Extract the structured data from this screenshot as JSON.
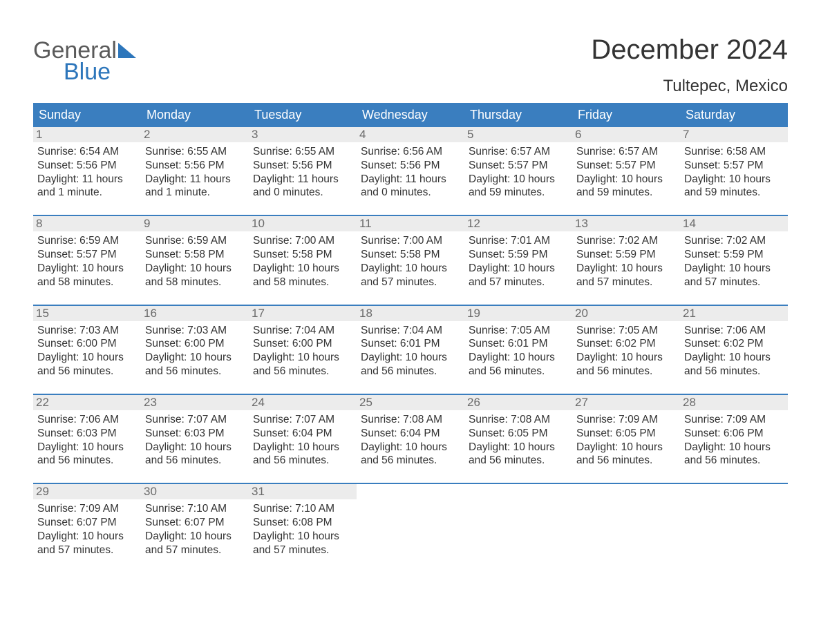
{
  "logo": {
    "line1": "General",
    "line2": "Blue"
  },
  "title": "December 2024",
  "location": "Tultepec, Mexico",
  "colors": {
    "header_bg": "#3a7ebf",
    "header_text": "#ffffff",
    "daynum_bg": "#ececec",
    "daynum_text": "#6a6a6a",
    "body_text": "#333333",
    "logo_gray": "#5a5a5a",
    "logo_blue": "#2d76bb",
    "week_border": "#3a7ebf"
  },
  "typography": {
    "title_fontsize": 40,
    "location_fontsize": 24,
    "dow_fontsize": 18,
    "daynum_fontsize": 17,
    "body_fontsize": 15.5
  },
  "days_of_week": [
    "Sunday",
    "Monday",
    "Tuesday",
    "Wednesday",
    "Thursday",
    "Friday",
    "Saturday"
  ],
  "weeks": [
    [
      {
        "n": "1",
        "sr": "6:54 AM",
        "ss": "5:56 PM",
        "dl": "11 hours and 1 minute."
      },
      {
        "n": "2",
        "sr": "6:55 AM",
        "ss": "5:56 PM",
        "dl": "11 hours and 1 minute."
      },
      {
        "n": "3",
        "sr": "6:55 AM",
        "ss": "5:56 PM",
        "dl": "11 hours and 0 minutes."
      },
      {
        "n": "4",
        "sr": "6:56 AM",
        "ss": "5:56 PM",
        "dl": "11 hours and 0 minutes."
      },
      {
        "n": "5",
        "sr": "6:57 AM",
        "ss": "5:57 PM",
        "dl": "10 hours and 59 minutes."
      },
      {
        "n": "6",
        "sr": "6:57 AM",
        "ss": "5:57 PM",
        "dl": "10 hours and 59 minutes."
      },
      {
        "n": "7",
        "sr": "6:58 AM",
        "ss": "5:57 PM",
        "dl": "10 hours and 59 minutes."
      }
    ],
    [
      {
        "n": "8",
        "sr": "6:59 AM",
        "ss": "5:57 PM",
        "dl": "10 hours and 58 minutes."
      },
      {
        "n": "9",
        "sr": "6:59 AM",
        "ss": "5:58 PM",
        "dl": "10 hours and 58 minutes."
      },
      {
        "n": "10",
        "sr": "7:00 AM",
        "ss": "5:58 PM",
        "dl": "10 hours and 58 minutes."
      },
      {
        "n": "11",
        "sr": "7:00 AM",
        "ss": "5:58 PM",
        "dl": "10 hours and 57 minutes."
      },
      {
        "n": "12",
        "sr": "7:01 AM",
        "ss": "5:59 PM",
        "dl": "10 hours and 57 minutes."
      },
      {
        "n": "13",
        "sr": "7:02 AM",
        "ss": "5:59 PM",
        "dl": "10 hours and 57 minutes."
      },
      {
        "n": "14",
        "sr": "7:02 AM",
        "ss": "5:59 PM",
        "dl": "10 hours and 57 minutes."
      }
    ],
    [
      {
        "n": "15",
        "sr": "7:03 AM",
        "ss": "6:00 PM",
        "dl": "10 hours and 56 minutes."
      },
      {
        "n": "16",
        "sr": "7:03 AM",
        "ss": "6:00 PM",
        "dl": "10 hours and 56 minutes."
      },
      {
        "n": "17",
        "sr": "7:04 AM",
        "ss": "6:00 PM",
        "dl": "10 hours and 56 minutes."
      },
      {
        "n": "18",
        "sr": "7:04 AM",
        "ss": "6:01 PM",
        "dl": "10 hours and 56 minutes."
      },
      {
        "n": "19",
        "sr": "7:05 AM",
        "ss": "6:01 PM",
        "dl": "10 hours and 56 minutes."
      },
      {
        "n": "20",
        "sr": "7:05 AM",
        "ss": "6:02 PM",
        "dl": "10 hours and 56 minutes."
      },
      {
        "n": "21",
        "sr": "7:06 AM",
        "ss": "6:02 PM",
        "dl": "10 hours and 56 minutes."
      }
    ],
    [
      {
        "n": "22",
        "sr": "7:06 AM",
        "ss": "6:03 PM",
        "dl": "10 hours and 56 minutes."
      },
      {
        "n": "23",
        "sr": "7:07 AM",
        "ss": "6:03 PM",
        "dl": "10 hours and 56 minutes."
      },
      {
        "n": "24",
        "sr": "7:07 AM",
        "ss": "6:04 PM",
        "dl": "10 hours and 56 minutes."
      },
      {
        "n": "25",
        "sr": "7:08 AM",
        "ss": "6:04 PM",
        "dl": "10 hours and 56 minutes."
      },
      {
        "n": "26",
        "sr": "7:08 AM",
        "ss": "6:05 PM",
        "dl": "10 hours and 56 minutes."
      },
      {
        "n": "27",
        "sr": "7:09 AM",
        "ss": "6:05 PM",
        "dl": "10 hours and 56 minutes."
      },
      {
        "n": "28",
        "sr": "7:09 AM",
        "ss": "6:06 PM",
        "dl": "10 hours and 56 minutes."
      }
    ],
    [
      {
        "n": "29",
        "sr": "7:09 AM",
        "ss": "6:07 PM",
        "dl": "10 hours and 57 minutes."
      },
      {
        "n": "30",
        "sr": "7:10 AM",
        "ss": "6:07 PM",
        "dl": "10 hours and 57 minutes."
      },
      {
        "n": "31",
        "sr": "7:10 AM",
        "ss": "6:08 PM",
        "dl": "10 hours and 57 minutes."
      },
      null,
      null,
      null,
      null
    ]
  ],
  "labels": {
    "sunrise": "Sunrise:",
    "sunset": "Sunset:",
    "daylight": "Daylight:"
  }
}
